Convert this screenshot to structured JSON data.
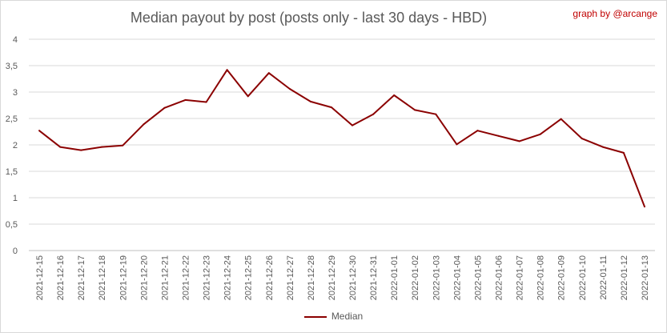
{
  "chart_data": {
    "type": "line",
    "title": "Median payout by post (posts only - last 30 days - HBD)",
    "credit": "graph by @arcange",
    "xlabel": "",
    "ylabel": "",
    "ylim": [
      0,
      4
    ],
    "yticks": [
      "0",
      "0,5",
      "1",
      "1,5",
      "2",
      "2,5",
      "3",
      "3,5",
      "4"
    ],
    "grid": true,
    "legend_position": "bottom",
    "color": "#8b0000",
    "categories": [
      "2021-12-15",
      "2021-12-16",
      "2021-12-17",
      "2021-12-18",
      "2021-12-19",
      "2021-12-20",
      "2021-12-21",
      "2021-12-22",
      "2021-12-23",
      "2021-12-24",
      "2021-12-25",
      "2021-12-26",
      "2021-12-27",
      "2021-12-28",
      "2021-12-29",
      "2021-12-30",
      "2021-12-31",
      "2022-01-01",
      "2022-01-02",
      "2022-01-03",
      "2022-01-04",
      "2022-01-05",
      "2022-01-06",
      "2022-01-07",
      "2022-01-08",
      "2022-01-09",
      "2022-01-10",
      "2022-01-11",
      "2022-01-12",
      "2022-01-13"
    ],
    "series": [
      {
        "name": "Median",
        "values": [
          2.27,
          1.96,
          1.9,
          1.96,
          1.99,
          2.39,
          2.7,
          2.85,
          2.81,
          3.42,
          2.92,
          3.36,
          3.06,
          2.82,
          2.71,
          2.37,
          2.58,
          2.94,
          2.66,
          2.58,
          2.01,
          2.27,
          2.17,
          2.07,
          2.2,
          2.49,
          2.12,
          1.96,
          1.85,
          0.83
        ]
      }
    ]
  }
}
